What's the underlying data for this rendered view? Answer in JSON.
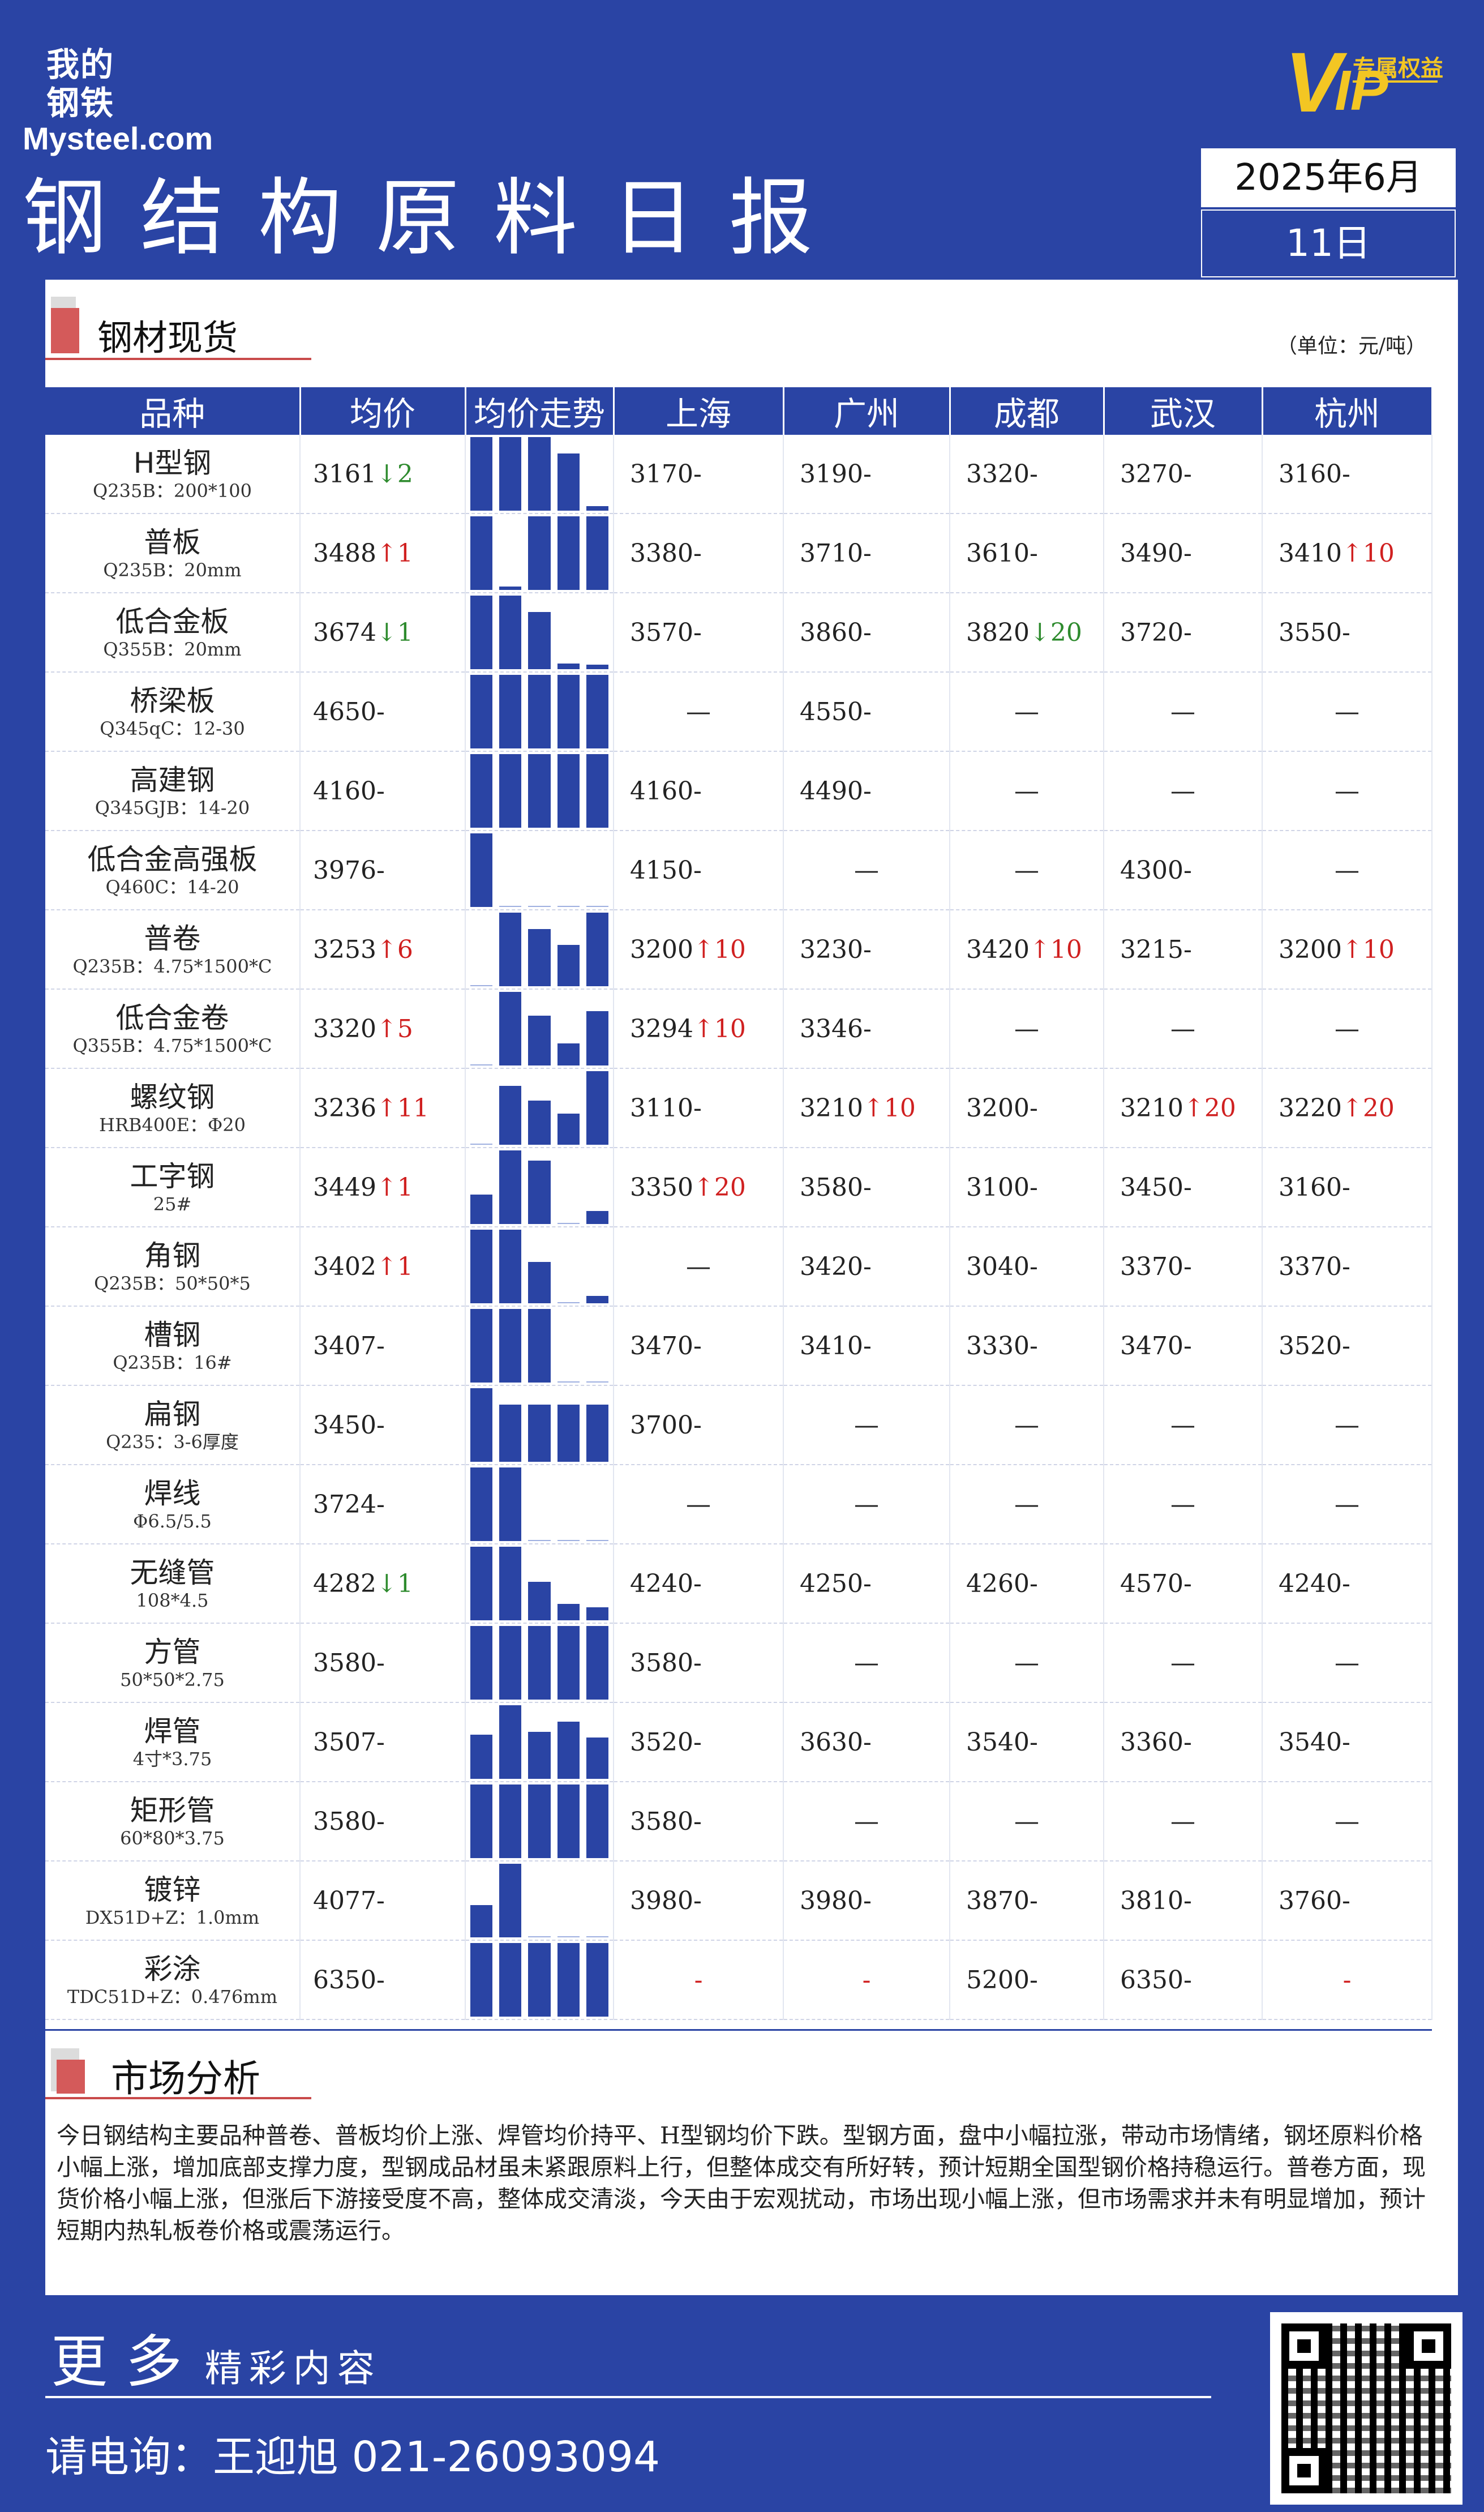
{
  "header": {
    "logo_cn": "我的钢铁",
    "logo_en": "Mysteel.com",
    "vip_big": "V",
    "vip_small": "专属权益",
    "vip_sub": "IP",
    "title": "钢结构原料日报",
    "date_month": "2025年6月",
    "date_day": "11日"
  },
  "section1": {
    "title": "钢材现货",
    "unit": "（单位：元/吨）"
  },
  "table": {
    "headers": [
      "品种",
      "均价",
      "均价走势",
      "上海",
      "广州",
      "成都",
      "武汉",
      "杭州"
    ],
    "rows": [
      {
        "name": "H型钢",
        "spec": "Q235B：200*100",
        "avg": "3161",
        "arrow": "↓",
        "chg": "2",
        "dir": "dn",
        "bars": [
          1,
          1,
          1,
          0.78,
          0.06
        ],
        "cities": [
          [
            "3170",
            "-",
            ""
          ],
          [
            "3190",
            "-",
            ""
          ],
          [
            "3320",
            "-",
            ""
          ],
          [
            "3270",
            "-",
            ""
          ],
          [
            "3160",
            "-",
            ""
          ]
        ]
      },
      {
        "name": "普板",
        "spec": "Q235B：20mm",
        "avg": "3488",
        "arrow": "↑",
        "chg": "1",
        "dir": "up",
        "bars": [
          1,
          0.05,
          1,
          1,
          1
        ],
        "cities": [
          [
            "3380",
            "-",
            ""
          ],
          [
            "3710",
            "-",
            ""
          ],
          [
            "3610",
            "-",
            ""
          ],
          [
            "3490",
            "-",
            ""
          ],
          [
            "3410",
            "↑",
            "10"
          ]
        ]
      },
      {
        "name": "低合金板",
        "spec": "Q355B：20mm",
        "avg": "3674",
        "arrow": "↓",
        "chg": "1",
        "dir": "dn",
        "bars": [
          1,
          1,
          0.78,
          0.08,
          0.06
        ],
        "cities": [
          [
            "3570",
            "-",
            ""
          ],
          [
            "3860",
            "-",
            ""
          ],
          [
            "3820",
            "↓",
            "20"
          ],
          [
            "3720",
            "-",
            ""
          ],
          [
            "3550",
            "-",
            ""
          ]
        ]
      },
      {
        "name": "桥梁板",
        "spec": "Q345qC：12-30",
        "avg": "4650",
        "arrow": "-",
        "chg": "",
        "dir": "",
        "bars": [
          1,
          1,
          1,
          1,
          1
        ],
        "cities": [
          [
            "—",
            "",
            ""
          ],
          [
            "4550",
            "-",
            ""
          ],
          [
            "—",
            "",
            ""
          ],
          [
            "—",
            "",
            ""
          ],
          [
            "—",
            "",
            ""
          ]
        ]
      },
      {
        "name": "高建钢",
        "spec": "Q345GJB：14-20",
        "avg": "4160",
        "arrow": "-",
        "chg": "",
        "dir": "",
        "bars": [
          1,
          1,
          1,
          1,
          1
        ],
        "cities": [
          [
            "4160",
            "-",
            ""
          ],
          [
            "4490",
            "-",
            ""
          ],
          [
            "—",
            "",
            ""
          ],
          [
            "—",
            "",
            ""
          ],
          [
            "—",
            "",
            ""
          ]
        ]
      },
      {
        "name": "低合金高强板",
        "spec": "Q460C：14-20",
        "avg": "3976",
        "arrow": "-",
        "chg": "",
        "dir": "",
        "bars": [
          1,
          0,
          0,
          0,
          0
        ],
        "cities": [
          [
            "4150",
            "-",
            ""
          ],
          [
            "—",
            "",
            ""
          ],
          [
            "—",
            "",
            ""
          ],
          [
            "4300",
            "-",
            ""
          ],
          [
            "—",
            "",
            ""
          ]
        ]
      },
      {
        "name": "普卷",
        "spec": "Q235B：4.75*1500*C",
        "avg": "3253",
        "arrow": "↑",
        "chg": "6",
        "dir": "up",
        "bars": [
          0.02,
          1,
          0.78,
          0.56,
          1
        ],
        "cities": [
          [
            "3200",
            "↑",
            "10"
          ],
          [
            "3230",
            "-",
            ""
          ],
          [
            "3420",
            "↑",
            "10"
          ],
          [
            "3215",
            "-",
            ""
          ],
          [
            "3200",
            "↑",
            "10"
          ]
        ]
      },
      {
        "name": "低合金卷",
        "spec": "Q355B：4.75*1500*C",
        "avg": "3320",
        "arrow": "↑",
        "chg": "5",
        "dir": "up",
        "bars": [
          0.02,
          1,
          0.68,
          0.3,
          0.74
        ],
        "cities": [
          [
            "3294",
            "↑",
            "10"
          ],
          [
            "3346",
            "-",
            ""
          ],
          [
            "—",
            "",
            ""
          ],
          [
            "—",
            "",
            ""
          ],
          [
            "—",
            "",
            ""
          ]
        ]
      },
      {
        "name": "螺纹钢",
        "spec": "HRB400E：Φ20",
        "avg": "3236",
        "arrow": "↑",
        "chg": "11",
        "dir": "up",
        "bars": [
          0.02,
          0.8,
          0.6,
          0.42,
          1
        ],
        "cities": [
          [
            "3110",
            "-",
            ""
          ],
          [
            "3210",
            "↑",
            "10"
          ],
          [
            "3200",
            "-",
            ""
          ],
          [
            "3210",
            "↑",
            "20"
          ],
          [
            "3220",
            "↑",
            "20"
          ]
        ]
      },
      {
        "name": "工字钢",
        "spec": "25#",
        "avg": "3449",
        "arrow": "↑",
        "chg": "1",
        "dir": "up",
        "bars": [
          0.4,
          1,
          0.86,
          0.02,
          0.18
        ],
        "cities": [
          [
            "3350",
            "↑",
            "20"
          ],
          [
            "3580",
            "-",
            ""
          ],
          [
            "3100",
            "-",
            ""
          ],
          [
            "3450",
            "-",
            ""
          ],
          [
            "3160",
            "-",
            ""
          ]
        ]
      },
      {
        "name": "角钢",
        "spec": "Q235B：50*50*5",
        "avg": "3402",
        "arrow": "↑",
        "chg": "1",
        "dir": "up",
        "bars": [
          1,
          1,
          0.56,
          0.02,
          0.1
        ],
        "cities": [
          [
            "—",
            "",
            ""
          ],
          [
            "3420",
            "-",
            ""
          ],
          [
            "3040",
            "-",
            ""
          ],
          [
            "3370",
            "-",
            ""
          ],
          [
            "3370",
            "-",
            ""
          ]
        ]
      },
      {
        "name": "槽钢",
        "spec": "Q235B：16#",
        "avg": "3407",
        "arrow": "-",
        "chg": "",
        "dir": "",
        "bars": [
          1,
          1,
          1,
          0.02,
          0.02
        ],
        "cities": [
          [
            "3470",
            "-",
            ""
          ],
          [
            "3410",
            "-",
            ""
          ],
          [
            "3330",
            "-",
            ""
          ],
          [
            "3470",
            "-",
            ""
          ],
          [
            "3520",
            "-",
            ""
          ]
        ]
      },
      {
        "name": "扁钢",
        "spec": "Q235：3-6厚度",
        "avg": "3450",
        "arrow": "-",
        "chg": "",
        "dir": "",
        "bars": [
          1,
          0.78,
          0.78,
          0.78,
          0.78
        ],
        "cities": [
          [
            "3700",
            "-",
            ""
          ],
          [
            "—",
            "",
            ""
          ],
          [
            "—",
            "",
            ""
          ],
          [
            "—",
            "",
            ""
          ],
          [
            "—",
            "",
            ""
          ]
        ]
      },
      {
        "name": "焊线",
        "spec": "Φ6.5/5.5",
        "avg": "3724",
        "arrow": "-",
        "chg": "",
        "dir": "",
        "bars": [
          1,
          1,
          0.02,
          0.02,
          0.02
        ],
        "cities": [
          [
            "—",
            "",
            ""
          ],
          [
            "—",
            "",
            ""
          ],
          [
            "—",
            "",
            ""
          ],
          [
            "—",
            "",
            ""
          ],
          [
            "—",
            "",
            ""
          ]
        ]
      },
      {
        "name": "无缝管",
        "spec": "108*4.5",
        "avg": "4282",
        "arrow": "↓",
        "chg": "1",
        "dir": "dn",
        "bars": [
          1,
          1,
          0.52,
          0.22,
          0.18
        ],
        "cities": [
          [
            "4240",
            "-",
            ""
          ],
          [
            "4250",
            "-",
            ""
          ],
          [
            "4260",
            "-",
            ""
          ],
          [
            "4570",
            "-",
            ""
          ],
          [
            "4240",
            "-",
            ""
          ]
        ]
      },
      {
        "name": "方管",
        "spec": "50*50*2.75",
        "avg": "3580",
        "arrow": "-",
        "chg": "",
        "dir": "",
        "bars": [
          1,
          1,
          1,
          1,
          1
        ],
        "cities": [
          [
            "3580",
            "-",
            ""
          ],
          [
            "—",
            "",
            ""
          ],
          [
            "—",
            "",
            ""
          ],
          [
            "—",
            "",
            ""
          ],
          [
            "—",
            "",
            ""
          ]
        ]
      },
      {
        "name": "焊管",
        "spec": "4寸*3.75",
        "avg": "3507",
        "arrow": "-",
        "chg": "",
        "dir": "",
        "bars": [
          0.6,
          1,
          0.64,
          0.78,
          0.56
        ],
        "cities": [
          [
            "3520",
            "-",
            ""
          ],
          [
            "3630",
            "-",
            ""
          ],
          [
            "3540",
            "-",
            ""
          ],
          [
            "3360",
            "-",
            ""
          ],
          [
            "3540",
            "-",
            ""
          ]
        ]
      },
      {
        "name": "矩形管",
        "spec": "60*80*3.75",
        "avg": "3580",
        "arrow": "-",
        "chg": "",
        "dir": "",
        "bars": [
          1,
          1,
          1,
          1,
          1
        ],
        "cities": [
          [
            "3580",
            "-",
            ""
          ],
          [
            "—",
            "",
            ""
          ],
          [
            "—",
            "",
            ""
          ],
          [
            "—",
            "",
            ""
          ],
          [
            "—",
            "",
            ""
          ]
        ]
      },
      {
        "name": "镀锌",
        "spec": "DX51D+Z：1.0mm",
        "avg": "4077",
        "arrow": "-",
        "chg": "",
        "dir": "",
        "bars": [
          0.44,
          1,
          0.02,
          0.02,
          0.02
        ],
        "cities": [
          [
            "3980",
            "-",
            ""
          ],
          [
            "3980",
            "-",
            ""
          ],
          [
            "3870",
            "-",
            ""
          ],
          [
            "3810",
            "-",
            ""
          ],
          [
            "3760",
            "-",
            ""
          ]
        ]
      },
      {
        "name": "彩涂",
        "spec": "TDC51D+Z：0.476mm",
        "avg": "6350",
        "arrow": "-",
        "chg": "",
        "dir": "",
        "bars": [
          1,
          1,
          1,
          1,
          1
        ],
        "cities": [
          [
            "-",
            "",
            ""
          ],
          [
            "-",
            "",
            ""
          ],
          [
            "5200",
            "-",
            ""
          ],
          [
            "6350",
            "-",
            ""
          ],
          [
            "-",
            "",
            ""
          ]
        ]
      }
    ]
  },
  "analysis": {
    "title": "市场分析",
    "text": "今日钢结构主要品种普卷、普板均价上涨、焊管均价持平、H型钢均价下跌。型钢方面，盘中小幅拉涨，带动市场情绪，钢坯原料价格小幅上涨，增加底部支撑力度，型钢成品材虽未紧跟原料上行，但整体成交有所好转，预计短期全国型钢价格持稳运行。普卷方面，现货价格小幅上涨，但涨后下游接受度不高，整体成交清淡，今天由于宏观扰动，市场出现小幅上涨，但市场需求并未有明显增加，预计短期内热轧板卷价格或震荡运行。"
  },
  "footer": {
    "more": "更 多",
    "more_small": "精彩内容",
    "phone_label": "请电询：",
    "contact": "王迎旭 021-26093094"
  }
}
